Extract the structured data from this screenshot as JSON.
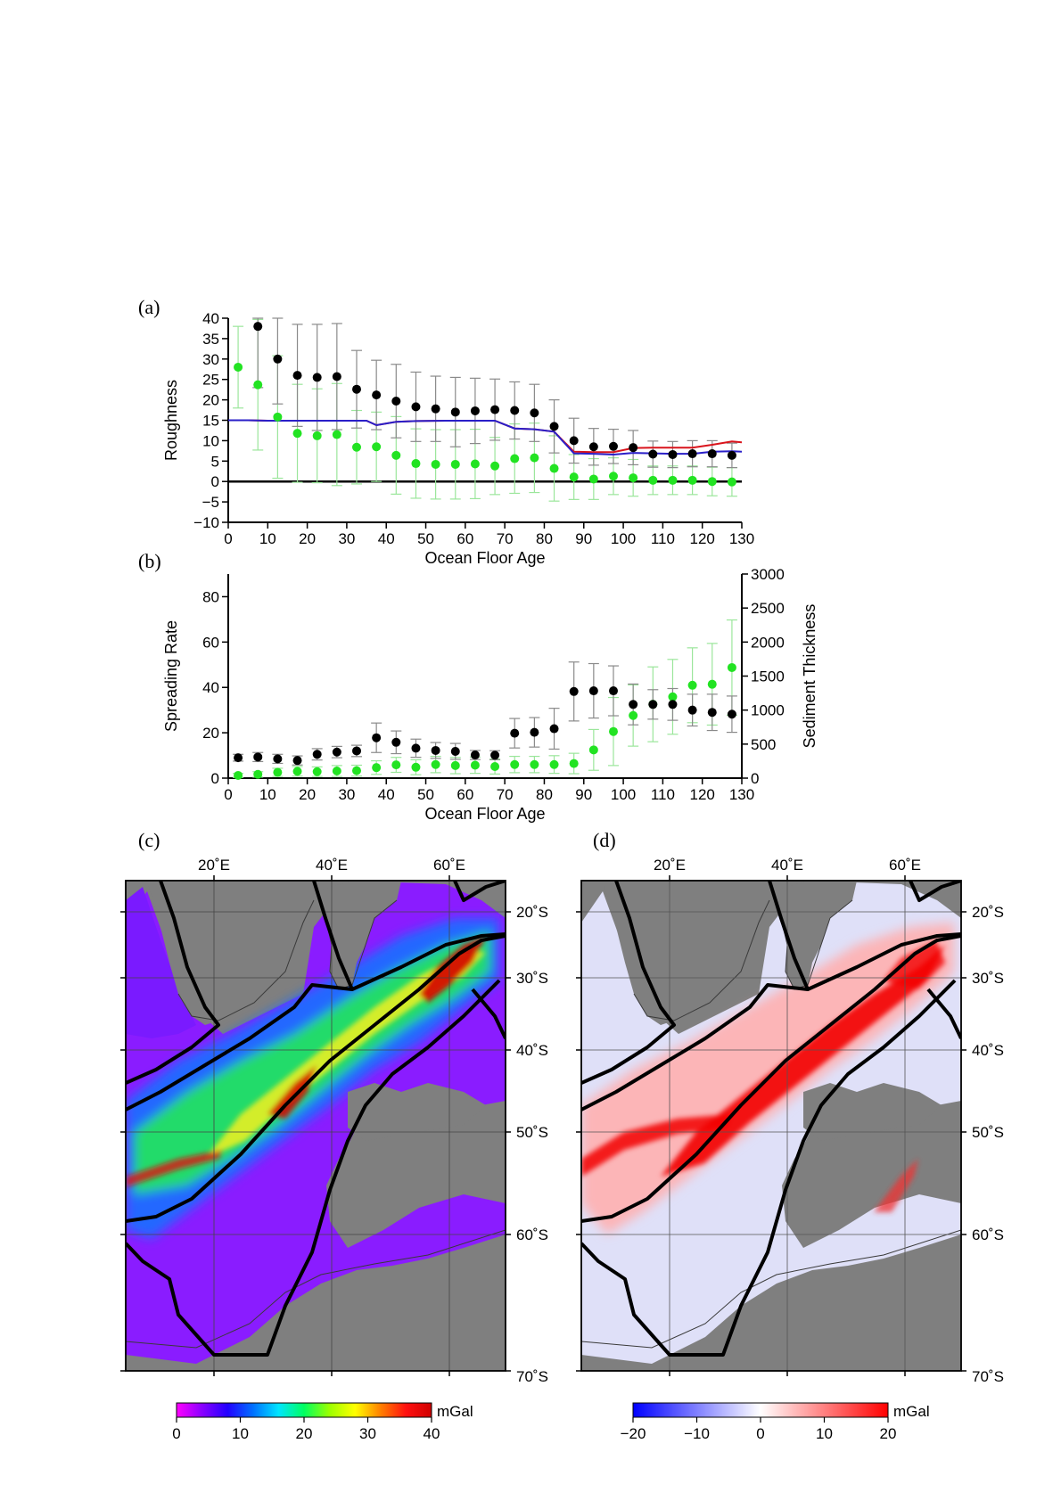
{
  "panels": {
    "a": "(a)",
    "b": "(b)",
    "c": "(c)",
    "d": "(d)"
  },
  "colors": {
    "black_series": "#000000",
    "green_series": "#22e322",
    "green_error": "#9be69b",
    "grey_error": "#8a8a8a",
    "red_line": "#d9141c",
    "blue_line": "#2a1fc8",
    "land": "#7f7f7f"
  },
  "chart_data": [
    {
      "id": "a",
      "type": "scatter",
      "xlabel": "Ocean Floor Age",
      "ylabel": "Roughness",
      "xlim": [
        0,
        130
      ],
      "ylim": [
        -10,
        40
      ],
      "xticks": [
        0,
        10,
        20,
        30,
        40,
        50,
        60,
        70,
        80,
        90,
        100,
        110,
        120,
        130
      ],
      "yticks": [
        -10,
        -5,
        0,
        5,
        10,
        15,
        20,
        25,
        30,
        35,
        40
      ],
      "zero_line": true,
      "x": [
        2.5,
        7.5,
        12.5,
        17.5,
        22.5,
        27.5,
        32.5,
        37.5,
        42.5,
        47.5,
        52.5,
        57.5,
        62.5,
        67.5,
        72.5,
        77.5,
        82.5,
        87.5,
        92.5,
        97.5,
        102.5,
        107.5,
        112.5,
        117.5,
        122.5,
        127.5
      ],
      "series": [
        {
          "color": "black",
          "values": [
            null,
            38,
            30,
            26,
            25.5,
            25.7,
            22.6,
            21.2,
            19.7,
            18.3,
            17.8,
            17.0,
            17.3,
            17.6,
            17.4,
            16.8,
            13.5,
            10.0,
            8.5,
            8.6,
            8.3,
            6.7,
            6.6,
            6.8,
            6.8,
            6.4
          ],
          "err": [
            null,
            15,
            11,
            12.5,
            13,
            13,
            9.5,
            8.5,
            9,
            8.5,
            8,
            8.5,
            8,
            7.5,
            7,
            7,
            6.5,
            5.5,
            4.5,
            4.2,
            4.2,
            3.2,
            3.2,
            3.2,
            3.2,
            3.0
          ]
        },
        {
          "color": "green",
          "values": [
            28.0,
            23.7,
            15.8,
            11.8,
            11.2,
            11.5,
            8.4,
            8.5,
            6.4,
            4.4,
            4.2,
            4.2,
            4.3,
            3.8,
            5.6,
            5.8,
            3.2,
            1.1,
            0.6,
            1.3,
            0.9,
            0.3,
            0.3,
            0.3,
            0.0,
            -0.1
          ],
          "err": [
            10,
            16,
            15,
            12,
            11.5,
            12.5,
            9,
            8.5,
            9.5,
            8.5,
            8.5,
            8.5,
            8.5,
            7,
            8.5,
            8.5,
            8,
            5.5,
            5,
            4.5,
            4.5,
            3.5,
            3.5,
            3.5,
            3.5,
            3.5
          ]
        }
      ],
      "lines": [
        {
          "color": "red",
          "x": [
            0,
            5,
            10,
            15,
            20,
            25,
            30,
            35,
            37.5,
            42.5,
            47.5,
            55,
            65,
            67.5,
            72.5,
            77.5,
            82.5,
            87.5,
            92.5,
            97.5,
            102.5,
            107.5,
            112.5,
            117.5,
            122.5,
            127.5,
            130
          ],
          "y": [
            15,
            15,
            14.9,
            14.9,
            14.9,
            14.9,
            14.9,
            14.9,
            13.8,
            14.6,
            14.8,
            14.9,
            14.9,
            14.9,
            13,
            12.8,
            12.2,
            7.3,
            7.2,
            7.2,
            8.2,
            8.3,
            8.3,
            8.3,
            9.0,
            9.8,
            9.6
          ]
        },
        {
          "color": "blue",
          "x": [
            0,
            5,
            10,
            15,
            20,
            25,
            30,
            35,
            37.5,
            42.5,
            47.5,
            55,
            65,
            67.5,
            72.5,
            77.5,
            82.5,
            87.5,
            92.5,
            97.5,
            102.5,
            107.5,
            112.5,
            117.5,
            122.5,
            127.5,
            130
          ],
          "y": [
            15,
            15,
            14.9,
            14.9,
            14.9,
            14.9,
            14.9,
            14.9,
            13.8,
            14.6,
            14.8,
            14.9,
            14.9,
            14.9,
            13,
            12.8,
            12.2,
            6.9,
            6.8,
            6.6,
            7.0,
            6.9,
            6.8,
            6.8,
            7.3,
            7.4,
            7.3
          ]
        }
      ]
    },
    {
      "id": "b",
      "type": "scatter",
      "xlabel": "Ocean Floor Age",
      "ylabel": "Spreading Rate",
      "y2label": "Sediment Thickness",
      "xlim": [
        0,
        130
      ],
      "ylim": [
        0,
        90
      ],
      "y2lim": [
        0,
        3000
      ],
      "xticks": [
        0,
        10,
        20,
        30,
        40,
        50,
        60,
        70,
        80,
        90,
        100,
        110,
        120,
        130
      ],
      "yticks": [
        0,
        20,
        40,
        60,
        80
      ],
      "y2ticks": [
        0,
        500,
        1000,
        1500,
        2000,
        2500,
        3000
      ],
      "x": [
        2.5,
        7.5,
        12.5,
        17.5,
        22.5,
        27.5,
        32.5,
        37.5,
        42.5,
        47.5,
        52.5,
        57.5,
        62.5,
        67.5,
        72.5,
        77.5,
        82.5,
        87.5,
        92.5,
        97.5,
        102.5,
        107.5,
        112.5,
        117.5,
        122.5,
        127.5
      ],
      "series": [
        {
          "color": "black",
          "axis": "left",
          "values": [
            9,
            9.3,
            8.5,
            7.8,
            10.5,
            11.5,
            12,
            17.8,
            15.8,
            13.2,
            12.2,
            11.8,
            10.2,
            10.1,
            19.8,
            20.2,
            21.8,
            38.2,
            38.5,
            38.5,
            32.5,
            32.5,
            32.5,
            30.0,
            29.0,
            28.2
          ],
          "err": [
            1.5,
            2,
            2,
            2,
            2.5,
            2.5,
            2.5,
            6.5,
            5,
            4,
            3.5,
            3.5,
            2,
            2,
            6.5,
            6.5,
            9,
            13,
            12,
            11,
            9,
            6.5,
            7,
            7,
            8,
            8
          ]
        },
        {
          "color": "green",
          "axis": "right",
          "values": [
            40,
            55,
            85,
            100,
            95,
            105,
            110,
            155,
            195,
            160,
            200,
            185,
            190,
            170,
            200,
            200,
            200,
            215,
            415,
            685,
            920,
            1085,
            1195,
            1365,
            1380,
            1625
          ],
          "err": [
            30,
            40,
            60,
            70,
            70,
            80,
            80,
            100,
            110,
            110,
            120,
            120,
            120,
            110,
            120,
            120,
            130,
            150,
            300,
            500,
            450,
            550,
            550,
            550,
            600,
            700
          ]
        }
      ]
    },
    {
      "id": "c",
      "type": "heatmap",
      "lon_ticks": [
        "20˚E",
        "40˚E",
        "60˚E"
      ],
      "lat_ticks": [
        "20˚S",
        "30˚S",
        "40˚S",
        "50˚S",
        "60˚S",
        "70˚S"
      ],
      "colorbar": {
        "unit": "mGal",
        "min": 0,
        "max": 40,
        "ticks": [
          "0",
          "10",
          "20",
          "30",
          "40"
        ],
        "colors": [
          "#ff00ff",
          "#8a00ff",
          "#2200ff",
          "#0070ff",
          "#00e5ff",
          "#00ff60",
          "#9cff00",
          "#ffff00",
          "#ff8000",
          "#ff1010",
          "#d00000"
        ]
      }
    },
    {
      "id": "d",
      "type": "heatmap",
      "lon_ticks": [
        "20˚E",
        "40˚E",
        "60˚E"
      ],
      "lat_ticks": [
        "20˚S",
        "30˚S",
        "40˚S",
        "50˚S",
        "60˚S",
        "70˚S"
      ],
      "colorbar": {
        "unit": "mGal",
        "min": -20,
        "max": 20,
        "ticks": [
          "−20",
          "−10",
          "0",
          "10",
          "20"
        ],
        "colors": [
          "#0000ff",
          "#8080ff",
          "#ffffff",
          "#ff8080",
          "#ff0000"
        ]
      }
    }
  ]
}
